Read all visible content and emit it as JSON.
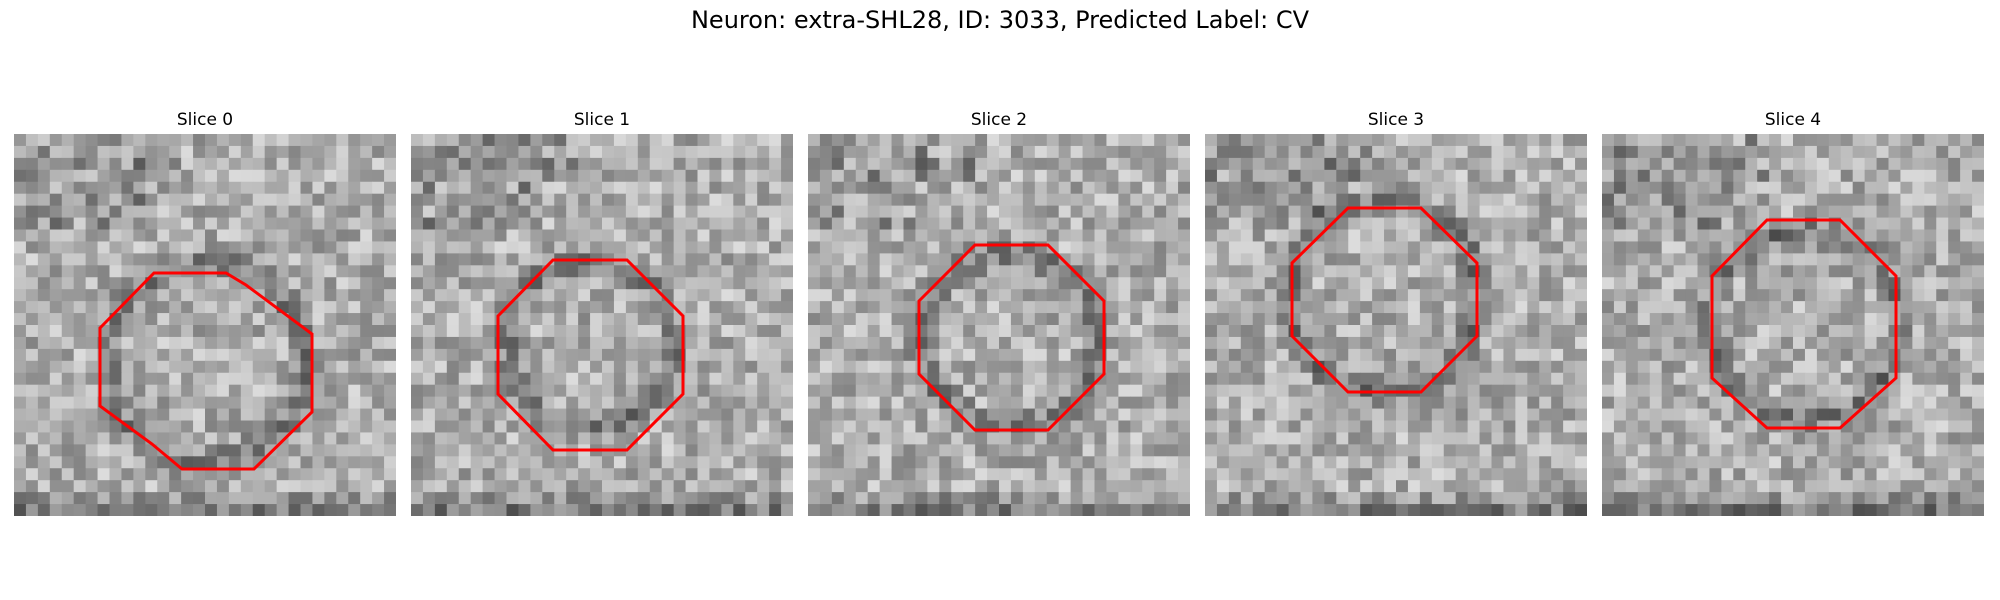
{
  "figure": {
    "title": "Neuron: extra-SHL28, ID: 3033, Predicted Label: CV"
  },
  "panels": [
    {
      "title": "Slice 0"
    },
    {
      "title": "Slice 1"
    },
    {
      "title": "Slice 2"
    },
    {
      "title": "Slice 3"
    },
    {
      "title": "Slice 4"
    }
  ],
  "colors": {
    "outline": "#ff0000",
    "background": "#ffffff"
  }
}
